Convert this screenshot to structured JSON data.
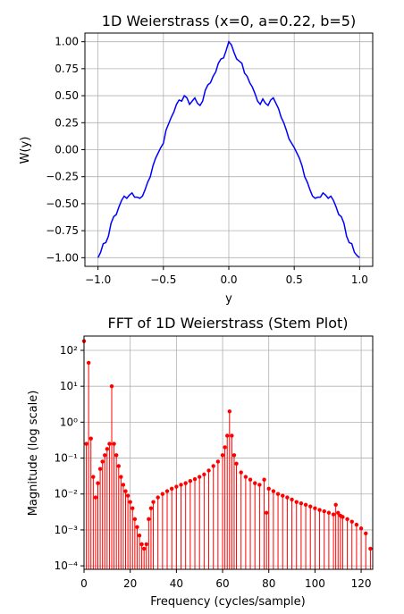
{
  "chart_data": [
    {
      "type": "line",
      "title": "1D Weierstrass (x=0, a=0.22, b=5)",
      "xlabel": "y",
      "ylabel": "W(y)",
      "xlim": [
        -1.1,
        1.1
      ],
      "ylim": [
        -1.08,
        1.08
      ],
      "xticks": [
        -1.0,
        -0.5,
        0.0,
        0.5,
        1.0
      ],
      "xtick_labels": [
        "−1.0",
        "−0.5",
        "0.0",
        "0.5",
        "1.0"
      ],
      "yticks": [
        -1.0,
        -0.75,
        -0.5,
        -0.25,
        0.0,
        0.25,
        0.5,
        0.75,
        1.0
      ],
      "ytick_labels": [
        "−1.00",
        "−0.75",
        "−0.50",
        "−0.25",
        "0.00",
        "0.25",
        "0.50",
        "0.75",
        "1.00"
      ],
      "grid": true,
      "color": "#0000ff",
      "series": [
        {
          "x": [
            -1.0,
            -0.98,
            -0.96,
            -0.94,
            -0.92,
            -0.9,
            -0.88,
            -0.86,
            -0.84,
            -0.82,
            -0.8,
            -0.78,
            -0.76,
            -0.74,
            -0.72,
            -0.7,
            -0.68,
            -0.66,
            -0.64,
            -0.62,
            -0.6,
            -0.58,
            -0.56,
            -0.54,
            -0.52,
            -0.5,
            -0.48,
            -0.46,
            -0.44,
            -0.42,
            -0.4,
            -0.38,
            -0.36,
            -0.34,
            -0.32,
            -0.3,
            -0.28,
            -0.26,
            -0.24,
            -0.22,
            -0.2,
            -0.18,
            -0.16,
            -0.14,
            -0.12,
            -0.1,
            -0.08,
            -0.06,
            -0.04,
            -0.02,
            0.0,
            0.02,
            0.04,
            0.06,
            0.08,
            0.1,
            0.12,
            0.14,
            0.16,
            0.18,
            0.2,
            0.22,
            0.24,
            0.26,
            0.28,
            0.3,
            0.32,
            0.34,
            0.36,
            0.38,
            0.4,
            0.42,
            0.44,
            0.46,
            0.48,
            0.5,
            0.52,
            0.54,
            0.56,
            0.58,
            0.6,
            0.62,
            0.64,
            0.66,
            0.68,
            0.7,
            0.72,
            0.74,
            0.76,
            0.78,
            0.8,
            0.82,
            0.84,
            0.86,
            0.88,
            0.9,
            0.92,
            0.94,
            0.96,
            0.98,
            1.0
          ],
          "values": [
            -1.0,
            -0.95,
            -0.87,
            -0.86,
            -0.8,
            -0.68,
            -0.62,
            -0.6,
            -0.53,
            -0.47,
            -0.43,
            -0.45,
            -0.42,
            -0.4,
            -0.44,
            -0.44,
            -0.45,
            -0.43,
            -0.37,
            -0.3,
            -0.25,
            -0.15,
            -0.08,
            -0.03,
            0.02,
            0.06,
            0.18,
            0.24,
            0.3,
            0.35,
            0.42,
            0.46,
            0.45,
            0.5,
            0.48,
            0.42,
            0.45,
            0.48,
            0.43,
            0.41,
            0.45,
            0.55,
            0.6,
            0.62,
            0.68,
            0.72,
            0.8,
            0.84,
            0.85,
            0.92,
            1.0,
            0.97,
            0.9,
            0.84,
            0.82,
            0.8,
            0.71,
            0.68,
            0.62,
            0.58,
            0.52,
            0.45,
            0.42,
            0.47,
            0.43,
            0.41,
            0.46,
            0.48,
            0.43,
            0.38,
            0.3,
            0.25,
            0.18,
            0.1,
            0.06,
            0.02,
            -0.03,
            -0.08,
            -0.15,
            -0.25,
            -0.3,
            -0.37,
            -0.43,
            -0.45,
            -0.44,
            -0.44,
            -0.4,
            -0.42,
            -0.45,
            -0.43,
            -0.47,
            -0.53,
            -0.6,
            -0.62,
            -0.68,
            -0.8,
            -0.86,
            -0.87,
            -0.95,
            -0.98,
            -1.0
          ]
        }
      ]
    },
    {
      "type": "stem",
      "title": "FFT of 1D Weierstrass (Stem Plot)",
      "xlabel": "Frequency (cycles/sample)",
      "ylabel": "Magnitude (log scale)",
      "yscale": "log",
      "xlim": [
        0,
        125
      ],
      "ylim": [
        8e-05,
        250
      ],
      "xticks": [
        0,
        20,
        40,
        60,
        80,
        100,
        120
      ],
      "xtick_labels": [
        "0",
        "20",
        "40",
        "60",
        "80",
        "100",
        "120"
      ],
      "yticks": [
        0.0001,
        0.001,
        0.01,
        0.1,
        1,
        10,
        100
      ],
      "ytick_labels": [
        "10⁻⁴",
        "10⁻³",
        "10⁻²",
        "10⁻¹",
        "10⁰",
        "10¹",
        "10²"
      ],
      "grid": true,
      "color": "#ff0000",
      "series": [
        {
          "x": [
            0,
            1,
            2,
            3,
            4,
            5,
            6,
            7,
            8,
            9,
            10,
            11,
            12,
            13,
            14,
            15,
            16,
            17,
            18,
            19,
            20,
            21,
            22,
            23,
            24,
            25,
            26,
            27,
            28,
            29,
            30,
            32,
            34,
            36,
            38,
            40,
            42,
            44,
            46,
            48,
            50,
            52,
            54,
            56,
            58,
            60,
            61,
            62,
            63,
            64,
            65,
            66,
            68,
            70,
            72,
            74,
            76,
            78,
            79,
            80,
            82,
            84,
            86,
            88,
            90,
            92,
            94,
            96,
            98,
            100,
            102,
            104,
            106,
            108,
            109,
            110,
            111,
            112,
            114,
            116,
            118,
            120,
            122,
            124
          ],
          "values": [
            180,
            0.25,
            45,
            0.35,
            0.03,
            0.008,
            0.02,
            0.05,
            0.08,
            0.12,
            0.18,
            0.25,
            10,
            0.25,
            0.12,
            0.06,
            0.03,
            0.018,
            0.012,
            0.009,
            0.006,
            0.004,
            0.002,
            0.0012,
            0.0007,
            0.0004,
            0.0003,
            0.0004,
            0.002,
            0.004,
            0.006,
            0.008,
            0.01,
            0.012,
            0.014,
            0.016,
            0.018,
            0.02,
            0.023,
            0.026,
            0.03,
            0.035,
            0.045,
            0.06,
            0.08,
            0.12,
            0.2,
            0.42,
            2.0,
            0.42,
            0.12,
            0.07,
            0.04,
            0.03,
            0.025,
            0.02,
            0.018,
            0.025,
            0.003,
            0.014,
            0.012,
            0.01,
            0.009,
            0.008,
            0.007,
            0.006,
            0.0055,
            0.005,
            0.0045,
            0.004,
            0.0036,
            0.0033,
            0.003,
            0.0027,
            0.005,
            0.003,
            0.0025,
            0.0023,
            0.002,
            0.0017,
            0.0014,
            0.0011,
            0.0008,
            0.0003
          ]
        }
      ]
    }
  ]
}
